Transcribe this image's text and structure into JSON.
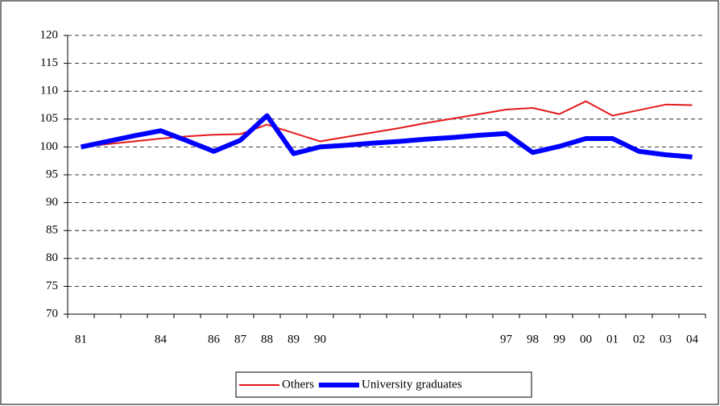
{
  "chart_data": {
    "type": "line",
    "categories": [
      "81",
      null,
      null,
      "84",
      null,
      "86",
      "87",
      "88",
      "89",
      "90",
      null,
      null,
      null,
      null,
      null,
      null,
      "97",
      "98",
      "99",
      "00",
      "01",
      "02",
      "03",
      "04"
    ],
    "series": [
      {
        "name": "Others",
        "color": "#e31a1c",
        "width": 2,
        "values": [
          100,
          100.5,
          101,
          101.5,
          101.9,
          102.2,
          102.3,
          104,
          102.5,
          101,
          101.8,
          102.6,
          103.4,
          104.3,
          105.1,
          105.9,
          106.7,
          107,
          105.9,
          108.2,
          105.6,
          106.6,
          107.6,
          107.5
        ]
      },
      {
        "name": "University graduates",
        "color": "#0000ff",
        "width": 6,
        "values": [
          100,
          101,
          102,
          102.9,
          101.1,
          99.2,
          101.2,
          105.6,
          98.8,
          100,
          100.3,
          100.7,
          101,
          101.4,
          101.7,
          102.1,
          102.4,
          99,
          100.1,
          101.5,
          101.5,
          99.2,
          98.6,
          98.2
        ]
      }
    ],
    "ylim": [
      70,
      120
    ],
    "yticks": [
      70,
      75,
      80,
      85,
      90,
      95,
      100,
      105,
      110,
      115,
      120
    ],
    "grid": true
  }
}
